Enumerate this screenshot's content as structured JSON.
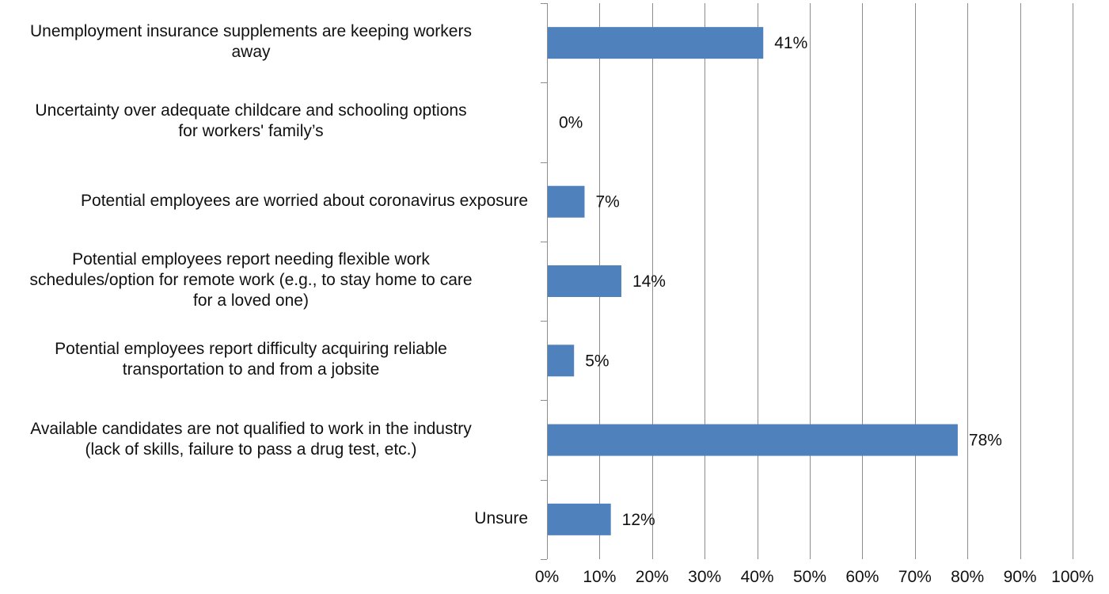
{
  "chart_data": {
    "type": "bar",
    "orientation": "horizontal",
    "categories": [
      "Unemployment insurance supplements are keeping workers\naway",
      "Uncertainty over adequate childcare and schooling options\nfor workers' family’s",
      "Potential employees are worried about coronavirus exposure",
      "Potential employees report needing flexible work\nschedules/option for remote work (e.g., to stay home to care\nfor a loved one)",
      "Potential employees report difficulty acquiring reliable\ntransportation to and from a jobsite",
      "Available candidates are not qualified to work in the industry\n(lack of skills, failure to pass a drug test, etc.)",
      "Unsure"
    ],
    "values": [
      41,
      0,
      7,
      14,
      5,
      78,
      12
    ],
    "value_labels": [
      "41%",
      "0%",
      "7%",
      "14%",
      "5%",
      "78%",
      "12%"
    ],
    "x_ticks": [
      "0%",
      "10%",
      "20%",
      "30%",
      "40%",
      "50%",
      "60%",
      "70%",
      "80%",
      "90%",
      "100%"
    ],
    "xlim": [
      0,
      100
    ],
    "grid": "vertical",
    "bar_color": "#4f81bd",
    "grid_color": "#8c8c8c",
    "axis_color": "#8c8c8c",
    "title": "",
    "xlabel": "",
    "ylabel": ""
  }
}
